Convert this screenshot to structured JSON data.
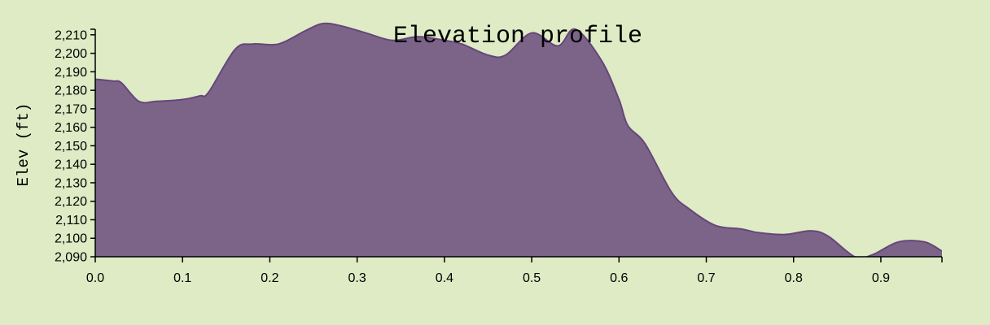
{
  "chart_data": {
    "type": "area",
    "title": "Elevation profile",
    "xlabel": "",
    "ylabel": "Elev (ft)",
    "xlim": [
      0,
      0.97
    ],
    "ylim": [
      2090,
      2213
    ],
    "x_ticks": [
      0.0,
      0.1,
      0.2,
      0.3,
      0.4,
      0.5,
      0.6,
      0.7,
      0.8,
      0.9
    ],
    "x_tick_labels": [
      "0.0",
      "0.1",
      "0.2",
      "0.3",
      "0.4",
      "0.5",
      "0.6",
      "0.7",
      "0.8",
      "0.9"
    ],
    "y_ticks": [
      2090,
      2100,
      2110,
      2120,
      2130,
      2140,
      2150,
      2160,
      2170,
      2180,
      2190,
      2200,
      2210
    ],
    "y_tick_labels": [
      "2,090",
      "2,100",
      "2,110",
      "2,120",
      "2,130",
      "2,140",
      "2,150",
      "2,160",
      "2,170",
      "2,180",
      "2,190",
      "2,200",
      "2,210"
    ],
    "grid": false,
    "colors": {
      "fill": "#7c6489",
      "stroke": "#66467a"
    },
    "series": [
      {
        "x": [
          0.0,
          0.02,
          0.03,
          0.05,
          0.07,
          0.1,
          0.12,
          0.13,
          0.16,
          0.18,
          0.21,
          0.24,
          0.26,
          0.28,
          0.31,
          0.34,
          0.37,
          0.4,
          0.42,
          0.45,
          0.47,
          0.5,
          0.53,
          0.55,
          0.58,
          0.6,
          0.61,
          0.63,
          0.66,
          0.68,
          0.71,
          0.74,
          0.76,
          0.79,
          0.82,
          0.84,
          0.87,
          0.89,
          0.92,
          0.95,
          0.97
        ],
        "values": [
          2186,
          2185,
          2184,
          2174,
          2174,
          2175,
          2177,
          2179,
          2202,
          2205,
          2205,
          2212,
          2216,
          2215,
          2211,
          2207,
          2209,
          2207,
          2205,
          2199,
          2199,
          2211,
          2204,
          2213,
          2196,
          2175,
          2161,
          2151,
          2125,
          2116,
          2107,
          2105,
          2103,
          2102,
          2104,
          2101,
          2090,
          2091,
          2098,
          2098,
          2093
        ]
      }
    ]
  }
}
